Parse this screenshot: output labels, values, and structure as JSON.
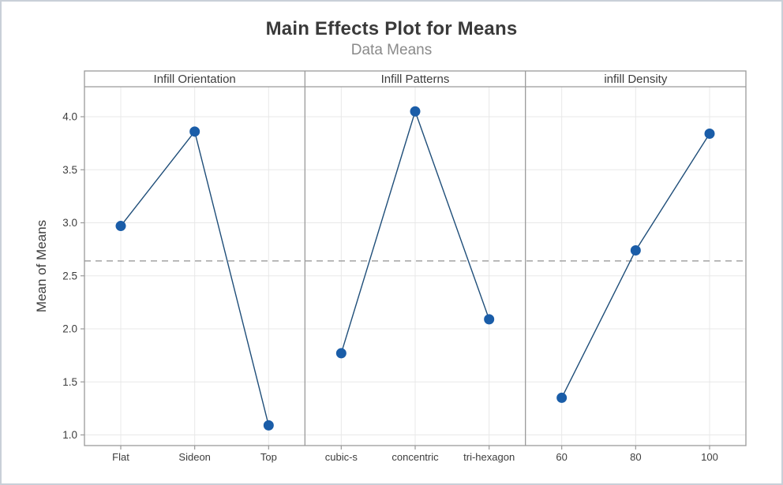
{
  "figure": {
    "border_color": "#c9d0d8",
    "background": "#ffffff"
  },
  "chart_data": {
    "type": "line",
    "title": "Main Effects Plot for Means",
    "subtitle": "Data Means",
    "ylabel": "Mean of Means",
    "ylim": [
      0.9,
      4.3
    ],
    "yticks": [
      1.0,
      1.5,
      2.0,
      2.5,
      3.0,
      3.5,
      4.0
    ],
    "grid": true,
    "legend": "none",
    "reference_line": {
      "value": 2.64,
      "style": "dashed"
    },
    "panels": [
      {
        "label": "Infill Orientation",
        "categories": [
          "Flat",
          "Sideon",
          "Top"
        ],
        "values": [
          2.97,
          3.86,
          1.09
        ]
      },
      {
        "label": "Infill Patterns",
        "categories": [
          "cubic-s",
          "concentric",
          "tri-hexagon"
        ],
        "values": [
          1.77,
          4.05,
          2.09
        ]
      },
      {
        "label": "infill Density",
        "categories": [
          "60",
          "80",
          "100"
        ],
        "values": [
          1.35,
          2.74,
          3.84
        ]
      }
    ],
    "colors": {
      "marker": "#1a5da8",
      "line": "#1f4e79",
      "grid": "#e8e8e8",
      "frame": "#9a9a9a",
      "reference_line": "#a3a3a3",
      "title": "#3a3a3a",
      "subtitle": "#8a8a8a",
      "axis_text": "#3d3d3d"
    }
  }
}
